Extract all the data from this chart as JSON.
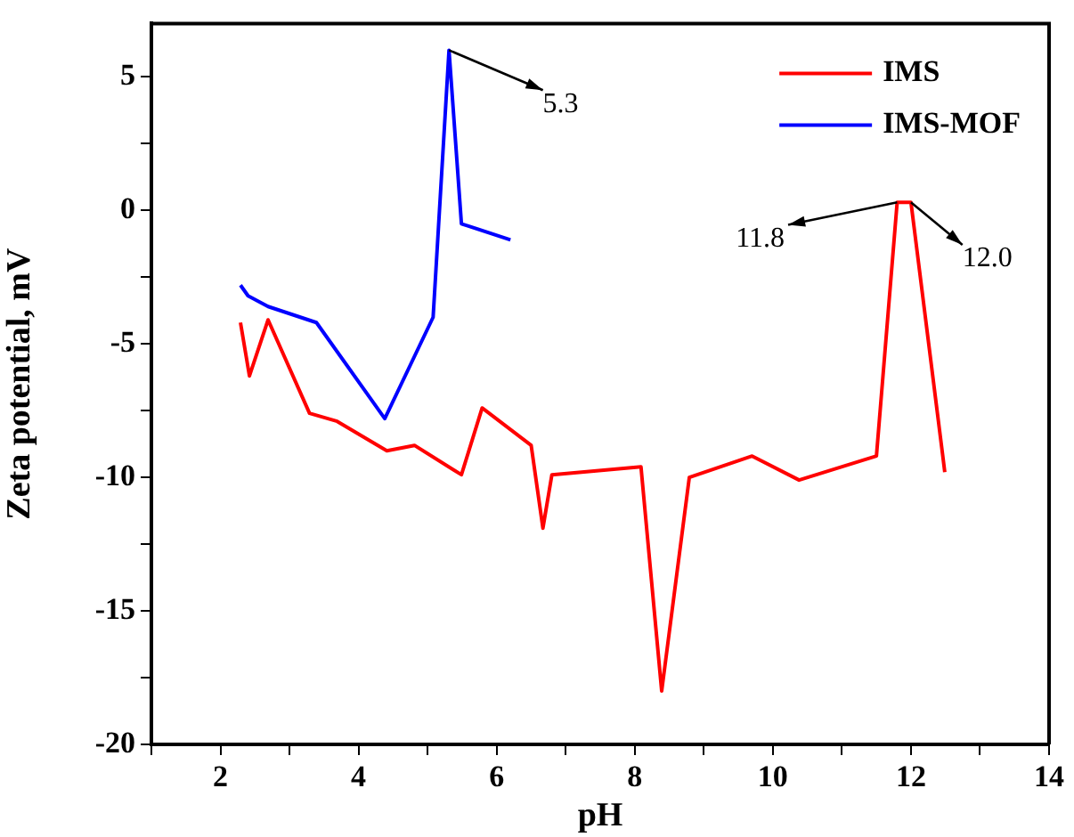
{
  "chart_data": {
    "type": "line",
    "xlabel": "pH",
    "ylabel": "Zeta potential, mV",
    "series": [
      {
        "name": "IMS",
        "color": "#ff0000",
        "x": [
          2.29,
          2.42,
          2.69,
          3.29,
          3.69,
          4.41,
          4.81,
          5.49,
          5.79,
          6.5,
          6.67,
          6.8,
          8.09,
          8.39,
          8.79,
          9.7,
          10.38,
          11.5,
          11.8,
          12.0,
          12.49
        ],
        "values": [
          -4.2,
          -6.2,
          -4.1,
          -7.6,
          -7.9,
          -9.0,
          -8.8,
          -9.9,
          -7.4,
          -8.8,
          -11.9,
          -9.9,
          -9.6,
          -18.0,
          -10.0,
          -9.2,
          -10.1,
          -9.2,
          0.3,
          0.3,
          -9.8
        ]
      },
      {
        "name": "IMS-MOF",
        "color": "#0000ff",
        "x": [
          2.29,
          2.4,
          2.69,
          3.39,
          4.38,
          5.08,
          5.31,
          5.49,
          6.2
        ],
        "values": [
          -2.8,
          -3.2,
          -3.6,
          -4.2,
          -7.8,
          -4.0,
          6.0,
          -0.5,
          -1.1
        ]
      }
    ],
    "annotations": [
      {
        "text": "5.3",
        "x": 5.31,
        "y": 6.0
      },
      {
        "text": "11.8",
        "x": 11.8,
        "y": 0.3
      },
      {
        "text": "12.0",
        "x": 12.0,
        "y": 0.3
      }
    ],
    "xlim": [
      1,
      14
    ],
    "ylim": [
      -20,
      7
    ],
    "xticks": [
      {
        "value": 1,
        "label": null
      },
      2,
      {
        "value": 3,
        "label": null
      },
      4,
      {
        "value": 5,
        "label": null
      },
      6,
      {
        "value": 7,
        "label": null
      },
      8,
      {
        "value": 9,
        "label": null
      },
      10,
      {
        "value": 11,
        "label": null
      },
      12,
      {
        "value": 13,
        "label": null
      },
      14
    ],
    "yticks": [
      -20,
      {
        "value": -17.5,
        "label": null
      },
      -15,
      {
        "value": -12.5,
        "label": null
      },
      -10,
      {
        "value": -7.5,
        "label": null
      },
      -5,
      {
        "value": -2.5,
        "label": null
      },
      0,
      {
        "value": 2.5,
        "label": null
      },
      5
    ],
    "legend": "top right",
    "grid": false,
    "marker": "none",
    "line_style": "solid"
  }
}
